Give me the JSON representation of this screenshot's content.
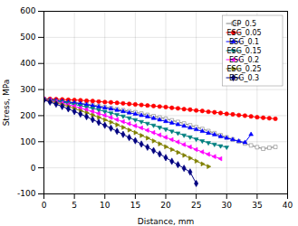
{
  "chart_data": {
    "type": "line",
    "xlabel": "Distance, mm",
    "ylabel": "Stress, MPa",
    "xlim": [
      0,
      40
    ],
    "ylim": [
      -100,
      600
    ],
    "xticks": [
      0,
      5,
      10,
      15,
      20,
      25,
      30,
      35,
      40
    ],
    "yticks": [
      -100,
      0,
      100,
      200,
      300,
      400,
      500,
      600
    ],
    "grid": true,
    "legend": "upper right",
    "series": [
      {
        "name": "CP_0.5",
        "color": "#808080",
        "marker": "hollow_square",
        "x": [
          0,
          1,
          2,
          3,
          4,
          5,
          6,
          7,
          8,
          9,
          10,
          11,
          12,
          13,
          14,
          15,
          16,
          17,
          18,
          19,
          20,
          21,
          22,
          23,
          24,
          25,
          26,
          27,
          28,
          29,
          30,
          31,
          32,
          33,
          34,
          35,
          36,
          37,
          38
        ],
        "values": [
          263,
          261,
          258,
          256,
          253,
          250,
          247,
          244,
          241,
          237,
          233,
          229,
          225,
          221,
          217,
          213,
          208,
          203,
          198,
          193,
          188,
          182,
          176,
          170,
          163,
          156,
          149,
          141,
          133,
          125,
          117,
          109,
          101,
          93,
          86,
          79,
          73,
          77,
          80
        ]
      },
      {
        "name": "ESG_0.05",
        "color": "#ff0000",
        "marker": "circle",
        "x": [
          0,
          1,
          2,
          3,
          4,
          5,
          6,
          7,
          8,
          9,
          10,
          11,
          12,
          13,
          14,
          15,
          16,
          17,
          18,
          19,
          20,
          21,
          22,
          23,
          24,
          25,
          26,
          27,
          28,
          29,
          30,
          31,
          32,
          33,
          34,
          35,
          36,
          37,
          38
        ],
        "values": [
          265,
          264,
          263,
          262,
          261,
          260,
          259,
          257,
          256,
          254,
          252,
          251,
          249,
          247,
          245,
          243,
          241,
          239,
          237,
          235,
          233,
          230,
          228,
          225,
          223,
          220,
          218,
          215,
          213,
          210,
          207,
          205,
          202,
          200,
          197,
          194,
          192,
          190,
          188
        ]
      },
      {
        "name": "ESG_0.1",
        "color": "#0000ff",
        "marker": "triangle_up",
        "x": [
          0,
          1,
          2,
          3,
          4,
          5,
          6,
          7,
          8,
          9,
          10,
          11,
          12,
          13,
          14,
          15,
          16,
          17,
          18,
          19,
          20,
          21,
          22,
          23,
          24,
          25,
          26,
          27,
          28,
          29,
          30,
          31,
          32,
          33,
          34
        ],
        "values": [
          263,
          260,
          258,
          255,
          252,
          249,
          246,
          242,
          238,
          234,
          230,
          226,
          221,
          216,
          211,
          206,
          201,
          196,
          190,
          184,
          178,
          172,
          166,
          160,
          153,
          147,
          140,
          133,
          127,
          120,
          114,
          108,
          102,
          97,
          128
        ]
      },
      {
        "name": "ESG_0.15",
        "color": "#008080",
        "marker": "triangle_down",
        "x": [
          0,
          1,
          2,
          3,
          4,
          5,
          6,
          7,
          8,
          9,
          10,
          11,
          12,
          13,
          14,
          15,
          16,
          17,
          18,
          19,
          20,
          21,
          22,
          23,
          24,
          25,
          26,
          27,
          28,
          29,
          30
        ],
        "values": [
          263,
          259,
          256,
          252,
          248,
          243,
          238,
          233,
          228,
          222,
          216,
          210,
          204,
          198,
          191,
          184,
          177,
          170,
          163,
          155,
          148,
          140,
          133,
          125,
          118,
          110,
          103,
          96,
          90,
          84,
          79
        ]
      },
      {
        "name": "ESG_0.2",
        "color": "#ff00ff",
        "marker": "triangle_left",
        "x": [
          0,
          1,
          2,
          3,
          4,
          5,
          6,
          7,
          8,
          9,
          10,
          11,
          12,
          13,
          14,
          15,
          16,
          17,
          18,
          19,
          20,
          21,
          22,
          23,
          24,
          25,
          26,
          27,
          28,
          29
        ],
        "values": [
          263,
          258,
          253,
          248,
          242,
          236,
          229,
          223,
          216,
          208,
          201,
          193,
          185,
          177,
          169,
          161,
          153,
          144,
          135,
          126,
          117,
          108,
          99,
          89,
          80,
          70,
          61,
          52,
          43,
          35
        ]
      },
      {
        "name": "ESG_0.25",
        "color": "#808000",
        "marker": "triangle_right",
        "x": [
          0,
          1,
          2,
          3,
          4,
          5,
          6,
          7,
          8,
          9,
          10,
          11,
          12,
          13,
          14,
          15,
          16,
          17,
          18,
          19,
          20,
          21,
          22,
          23,
          24,
          25,
          26,
          27
        ],
        "values": [
          262,
          255,
          249,
          242,
          235,
          227,
          219,
          211,
          202,
          193,
          184,
          175,
          165,
          155,
          145,
          135,
          124,
          114,
          103,
          92,
          81,
          70,
          59,
          48,
          37,
          26,
          15,
          5
        ]
      },
      {
        "name": "ESG_0.3",
        "color": "#000080",
        "marker": "diamond",
        "x": [
          0,
          1,
          2,
          3,
          4,
          5,
          6,
          7,
          8,
          9,
          10,
          11,
          12,
          13,
          14,
          15,
          16,
          17,
          18,
          19,
          20,
          21,
          22,
          23,
          24,
          25
        ],
        "values": [
          260,
          252,
          244,
          235,
          226,
          216,
          206,
          196,
          185,
          174,
          163,
          152,
          140,
          128,
          116,
          104,
          91,
          79,
          66,
          53,
          39,
          25,
          12,
          -2,
          -16,
          -60
        ]
      }
    ]
  }
}
